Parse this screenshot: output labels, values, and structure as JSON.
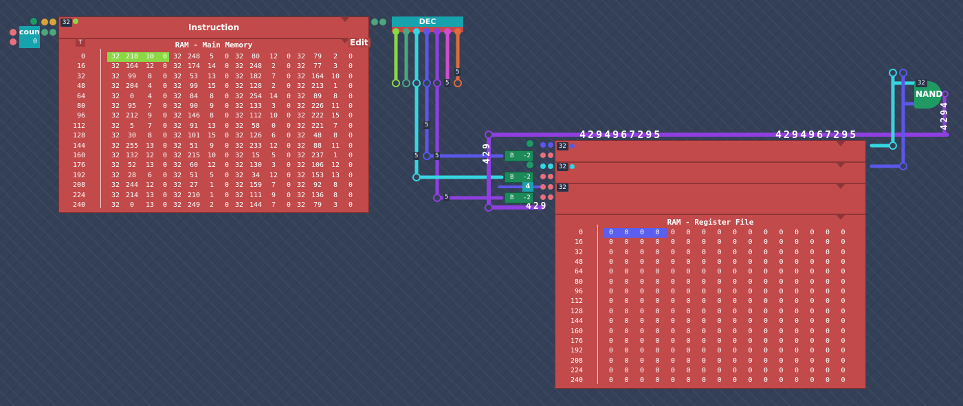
{
  "counter": {
    "label": "coun",
    "value": "0",
    "width_tag": "32"
  },
  "instruction": {
    "title": "Instruction"
  },
  "decoder": {
    "label": "DEC"
  },
  "main_memory": {
    "title": "RAM - Main Memory",
    "edit_label": "Edit",
    "addresses": [
      "0",
      "16",
      "32",
      "48",
      "64",
      "80",
      "96",
      "112",
      "128",
      "144",
      "160",
      "176",
      "192",
      "208",
      "224",
      "240"
    ],
    "rows": [
      [
        "32",
        "218",
        "10",
        "0",
        "32",
        "248",
        "5",
        "0",
        "32",
        "80",
        "12",
        "0",
        "32",
        "79",
        "2",
        "0"
      ],
      [
        "32",
        "164",
        "12",
        "0",
        "32",
        "174",
        "14",
        "0",
        "32",
        "248",
        "2",
        "0",
        "32",
        "77",
        "3",
        "0"
      ],
      [
        "32",
        "99",
        "8",
        "0",
        "32",
        "53",
        "13",
        "0",
        "32",
        "182",
        "7",
        "0",
        "32",
        "164",
        "10",
        "0"
      ],
      [
        "32",
        "204",
        "4",
        "0",
        "32",
        "99",
        "15",
        "0",
        "32",
        "128",
        "2",
        "0",
        "32",
        "213",
        "1",
        "0"
      ],
      [
        "32",
        "0",
        "4",
        "0",
        "32",
        "84",
        "8",
        "0",
        "32",
        "254",
        "14",
        "0",
        "32",
        "89",
        "8",
        "0"
      ],
      [
        "32",
        "95",
        "7",
        "0",
        "32",
        "90",
        "9",
        "0",
        "32",
        "133",
        "3",
        "0",
        "32",
        "226",
        "11",
        "0"
      ],
      [
        "32",
        "212",
        "9",
        "0",
        "32",
        "146",
        "8",
        "0",
        "32",
        "112",
        "10",
        "0",
        "32",
        "222",
        "15",
        "0"
      ],
      [
        "32",
        "5",
        "7",
        "0",
        "32",
        "91",
        "13",
        "0",
        "32",
        "58",
        "0",
        "0",
        "32",
        "221",
        "7",
        "0"
      ],
      [
        "32",
        "30",
        "8",
        "0",
        "32",
        "101",
        "15",
        "0",
        "32",
        "126",
        "6",
        "0",
        "32",
        "48",
        "8",
        "0"
      ],
      [
        "32",
        "255",
        "13",
        "0",
        "32",
        "51",
        "9",
        "0",
        "32",
        "233",
        "12",
        "0",
        "32",
        "88",
        "11",
        "0"
      ],
      [
        "32",
        "132",
        "12",
        "0",
        "32",
        "215",
        "10",
        "0",
        "32",
        "15",
        "5",
        "0",
        "32",
        "237",
        "1",
        "0"
      ],
      [
        "32",
        "52",
        "13",
        "0",
        "32",
        "60",
        "12",
        "0",
        "32",
        "130",
        "3",
        "0",
        "32",
        "106",
        "12",
        "0"
      ],
      [
        "32",
        "28",
        "6",
        "0",
        "32",
        "51",
        "5",
        "0",
        "32",
        "34",
        "12",
        "0",
        "32",
        "153",
        "13",
        "0"
      ],
      [
        "32",
        "244",
        "12",
        "0",
        "32",
        "27",
        "1",
        "0",
        "32",
        "159",
        "7",
        "0",
        "32",
        "92",
        "8",
        "0"
      ],
      [
        "32",
        "214",
        "13",
        "0",
        "32",
        "210",
        "1",
        "0",
        "32",
        "111",
        "9",
        "0",
        "32",
        "136",
        "8",
        "0"
      ],
      [
        "32",
        "0",
        "13",
        "0",
        "32",
        "249",
        "2",
        "0",
        "32",
        "144",
        "7",
        "0",
        "32",
        "79",
        "3",
        "0"
      ]
    ]
  },
  "register_file": {
    "title": "RAM - Register File",
    "addresses": [
      "0",
      "16",
      "32",
      "48",
      "64",
      "80",
      "96",
      "112",
      "128",
      "144",
      "160",
      "176",
      "192",
      "208",
      "224",
      "240"
    ],
    "cell_value": "0"
  },
  "wire_values": {
    "bus_left": "4294967295",
    "bus_right": "4294967295",
    "vertical_left": "429",
    "bottom": "429",
    "right_vertical": "4294",
    "reg_select": "4"
  },
  "bit_width_tags": {
    "t1": "32",
    "t2": "32",
    "t3": "32",
    "nand_in": "32"
  },
  "mini_tags": {
    "five": "5",
    "b": "B",
    "minus2": "-2"
  },
  "nand": {
    "label": "NAND"
  },
  "colors": {
    "component_red": "#c24a4b",
    "purple_wire": "#8f3fe0",
    "cyan_wire": "#35d6e0",
    "blue_wire": "#5b57ea",
    "highlight_green": "#8bd847",
    "highlight_blue": "#5a5ff0",
    "nand_green": "#1f9a63"
  }
}
